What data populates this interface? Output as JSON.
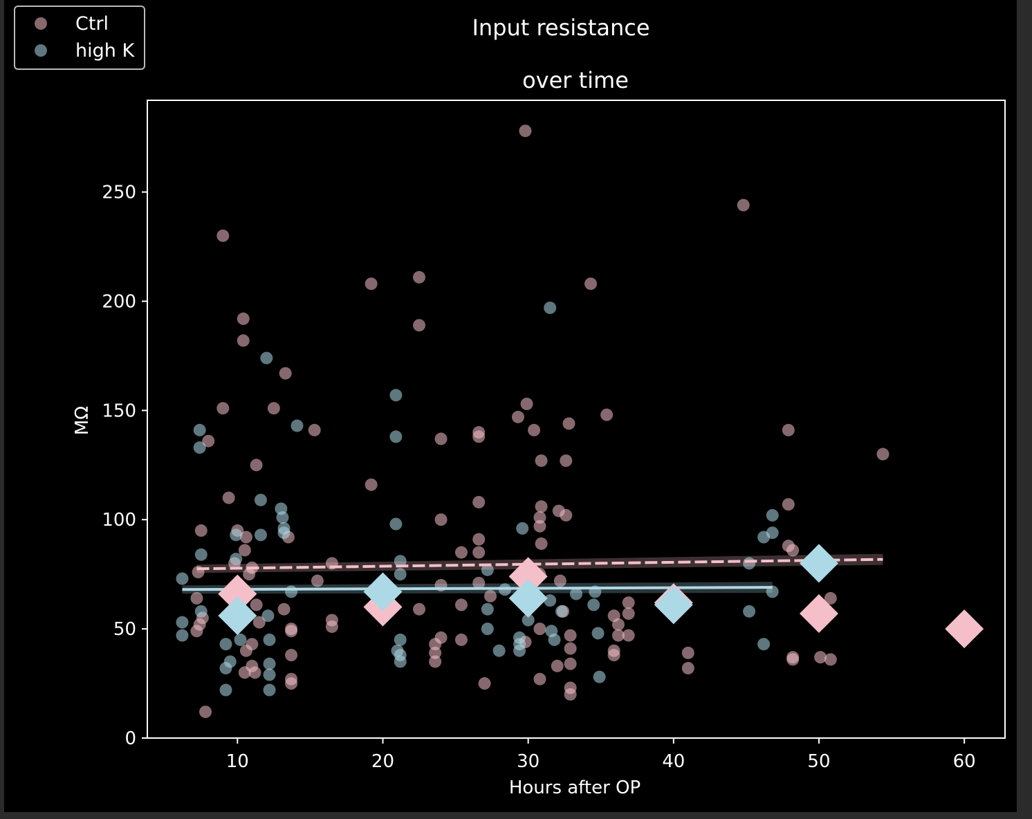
{
  "chart_data": {
    "type": "scatter",
    "title": "Input resistance",
    "subtitle": "over time",
    "xlabel": "Hours after OP",
    "ylabel": "MΩ",
    "xlim": [
      3.8,
      62.8
    ],
    "ylim": [
      0,
      292
    ],
    "xticks": [
      10,
      20,
      30,
      40,
      50,
      60
    ],
    "yticks": [
      0,
      50,
      100,
      150,
      200,
      250
    ],
    "grid": false,
    "legend_position": "top-left",
    "colors": {
      "background": "#000000",
      "axes": "#ffffff",
      "ctrl": "#f4bfc9",
      "high_k": "#add8e6"
    },
    "series": [
      {
        "name": "Ctrl",
        "color": "#f4bfc9",
        "points": [
          [
            9.0,
            230
          ],
          [
            10.4,
            192
          ],
          [
            10.4,
            182
          ],
          [
            9.0,
            151
          ],
          [
            9.4,
            110
          ],
          [
            7.5,
            95
          ],
          [
            10.0,
            95
          ],
          [
            10.5,
            86
          ],
          [
            10.6,
            92
          ],
          [
            9.8,
            80
          ],
          [
            7.3,
            76
          ],
          [
            8.0,
            136
          ],
          [
            11.3,
            125
          ],
          [
            12.5,
            151
          ],
          [
            13.3,
            167
          ],
          [
            15.3,
            141
          ],
          [
            13.5,
            92
          ],
          [
            11.0,
            78
          ],
          [
            10.8,
            75
          ],
          [
            11.3,
            61
          ],
          [
            11.5,
            53
          ],
          [
            10.6,
            40
          ],
          [
            11.0,
            43
          ],
          [
            10.5,
            30
          ],
          [
            11.2,
            30
          ],
          [
            11.0,
            33
          ],
          [
            7.2,
            49
          ],
          [
            7.4,
            52
          ],
          [
            7.6,
            55
          ],
          [
            7.2,
            64
          ],
          [
            7.8,
            12
          ],
          [
            13.7,
            50
          ],
          [
            13.7,
            49
          ],
          [
            13.7,
            38
          ],
          [
            13.7,
            27
          ],
          [
            13.7,
            25
          ],
          [
            13.2,
            59
          ],
          [
            15.5,
            72
          ],
          [
            16.5,
            80
          ],
          [
            16.5,
            54
          ],
          [
            16.5,
            51
          ],
          [
            19.2,
            208
          ],
          [
            19.2,
            116
          ],
          [
            22.5,
            211
          ],
          [
            22.5,
            189
          ],
          [
            22.5,
            59
          ],
          [
            24.0,
            137
          ],
          [
            24.0,
            100
          ],
          [
            24.0,
            70
          ],
          [
            24.0,
            46
          ],
          [
            23.6,
            43
          ],
          [
            23.6,
            39
          ],
          [
            23.6,
            35
          ],
          [
            25.4,
            85
          ],
          [
            25.4,
            61
          ],
          [
            25.4,
            45
          ],
          [
            26.6,
            140
          ],
          [
            26.6,
            138
          ],
          [
            26.6,
            108
          ],
          [
            26.6,
            91
          ],
          [
            26.6,
            85
          ],
          [
            26.6,
            71
          ],
          [
            27.0,
            25
          ],
          [
            27.4,
            65
          ],
          [
            29.8,
            278
          ],
          [
            29.9,
            153
          ],
          [
            29.3,
            147
          ],
          [
            30.4,
            141
          ],
          [
            30.9,
            127
          ],
          [
            30.9,
            106
          ],
          [
            30.8,
            101
          ],
          [
            30.8,
            97
          ],
          [
            30.9,
            89
          ],
          [
            30.8,
            75
          ],
          [
            30.8,
            50
          ],
          [
            30.8,
            27
          ],
          [
            29.8,
            44
          ],
          [
            32.1,
            104
          ],
          [
            32.6,
            127
          ],
          [
            32.6,
            102
          ],
          [
            32.8,
            144
          ],
          [
            32.2,
            72
          ],
          [
            32.4,
            58
          ],
          [
            32.0,
            33
          ],
          [
            32.9,
            47
          ],
          [
            32.9,
            41
          ],
          [
            32.9,
            34
          ],
          [
            32.9,
            23
          ],
          [
            32.9,
            20
          ],
          [
            34.3,
            208
          ],
          [
            35.4,
            148
          ],
          [
            35.9,
            56
          ],
          [
            36.2,
            52
          ],
          [
            36.2,
            47
          ],
          [
            35.9,
            40
          ],
          [
            35.9,
            38
          ],
          [
            36.9,
            62
          ],
          [
            36.9,
            57
          ],
          [
            36.9,
            47
          ],
          [
            41.0,
            39
          ],
          [
            41.0,
            32
          ],
          [
            44.8,
            244
          ],
          [
            47.9,
            141
          ],
          [
            47.9,
            107
          ],
          [
            47.9,
            88
          ],
          [
            48.2,
            86
          ],
          [
            48.2,
            37
          ],
          [
            48.2,
            36
          ],
          [
            50.1,
            37
          ],
          [
            50.8,
            36
          ],
          [
            50.8,
            64
          ],
          [
            54.4,
            130
          ]
        ]
      },
      {
        "name": "high K",
        "color": "#add8e6",
        "points": [
          [
            6.2,
            73
          ],
          [
            6.2,
            53
          ],
          [
            6.2,
            47
          ],
          [
            7.4,
            141
          ],
          [
            7.4,
            133
          ],
          [
            7.5,
            84
          ],
          [
            7.5,
            58
          ],
          [
            9.2,
            43
          ],
          [
            9.2,
            32
          ],
          [
            9.2,
            22
          ],
          [
            9.5,
            35
          ],
          [
            9.9,
            93
          ],
          [
            9.9,
            82
          ],
          [
            10.2,
            45
          ],
          [
            11.6,
            109
          ],
          [
            11.6,
            93
          ],
          [
            12.0,
            174
          ],
          [
            12.1,
            56
          ],
          [
            12.2,
            45
          ],
          [
            12.2,
            34
          ],
          [
            12.2,
            29
          ],
          [
            12.2,
            22
          ],
          [
            13.0,
            105
          ],
          [
            13.1,
            101
          ],
          [
            13.2,
            96
          ],
          [
            13.2,
            94
          ],
          [
            13.7,
            67
          ],
          [
            14.1,
            143
          ],
          [
            20.9,
            157
          ],
          [
            20.9,
            138
          ],
          [
            20.9,
            98
          ],
          [
            21.2,
            81
          ],
          [
            21.2,
            75
          ],
          [
            21.2,
            45
          ],
          [
            21.0,
            40
          ],
          [
            21.2,
            38
          ],
          [
            21.2,
            35
          ],
          [
            27.2,
            77
          ],
          [
            27.2,
            59
          ],
          [
            27.2,
            50
          ],
          [
            28.0,
            40
          ],
          [
            28.4,
            68
          ],
          [
            29.6,
            96
          ],
          [
            29.4,
            46
          ],
          [
            29.4,
            43
          ],
          [
            29.4,
            40
          ],
          [
            30.0,
            54
          ],
          [
            31.5,
            197
          ],
          [
            31.5,
            63
          ],
          [
            31.6,
            49
          ],
          [
            31.8,
            45
          ],
          [
            32.3,
            58
          ],
          [
            33.3,
            66
          ],
          [
            34.5,
            61
          ],
          [
            34.8,
            48
          ],
          [
            34.9,
            28
          ],
          [
            34.6,
            67
          ],
          [
            45.2,
            58
          ],
          [
            45.2,
            80
          ],
          [
            46.2,
            92
          ],
          [
            46.2,
            43
          ],
          [
            46.8,
            102
          ],
          [
            46.8,
            94
          ],
          [
            46.8,
            67
          ]
        ]
      }
    ],
    "means": {
      "Ctrl": [
        [
          10,
          66
        ],
        [
          20,
          60
        ],
        [
          30,
          74
        ],
        [
          40,
          62
        ],
        [
          50,
          57
        ],
        [
          60,
          50
        ]
      ],
      "high K": [
        [
          10,
          56
        ],
        [
          20,
          67
        ],
        [
          30,
          64
        ],
        [
          40,
          61
        ],
        [
          50,
          80
        ]
      ]
    },
    "regression": {
      "Ctrl": {
        "x": [
          7.2,
          54.4
        ],
        "y": [
          77.5,
          81.8
        ],
        "style": "dashed"
      },
      "high K": {
        "x": [
          6.2,
          46.8
        ],
        "y": [
          68.0,
          69.0
        ],
        "style": "solid"
      }
    }
  }
}
